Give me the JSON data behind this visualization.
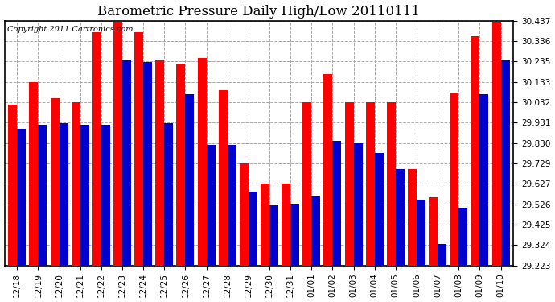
{
  "title": "Barometric Pressure Daily High/Low 20110111",
  "copyright": "Copyright 2011 Cartronics.com",
  "dates": [
    "12/18",
    "12/19",
    "12/20",
    "12/21",
    "12/22",
    "12/23",
    "12/24",
    "12/25",
    "12/26",
    "12/27",
    "12/28",
    "12/29",
    "12/30",
    "12/31",
    "01/01",
    "01/02",
    "01/03",
    "01/04",
    "01/05",
    "01/06",
    "01/07",
    "01/08",
    "01/09",
    "01/10"
  ],
  "highs": [
    30.02,
    30.13,
    30.05,
    30.03,
    30.38,
    30.43,
    30.38,
    30.24,
    30.22,
    30.25,
    30.09,
    29.73,
    29.63,
    29.63,
    30.03,
    30.17,
    30.03,
    30.03,
    30.03,
    29.7,
    29.56,
    30.08,
    30.36,
    30.43
  ],
  "lows": [
    29.9,
    29.92,
    29.93,
    29.92,
    29.92,
    30.24,
    30.23,
    29.93,
    30.07,
    29.82,
    29.82,
    29.59,
    29.52,
    29.53,
    29.57,
    29.84,
    29.83,
    29.78,
    29.7,
    29.55,
    29.33,
    29.51,
    30.07,
    30.24
  ],
  "high_color": "#ff0000",
  "low_color": "#0000cc",
  "ylim_min": 29.223,
  "ylim_max": 30.437,
  "yticks": [
    29.223,
    29.324,
    29.425,
    29.526,
    29.627,
    29.729,
    29.83,
    29.931,
    30.032,
    30.133,
    30.235,
    30.336,
    30.437
  ],
  "bg_color": "#ffffff",
  "grid_color": "#aaaaaa",
  "title_fontsize": 12,
  "tick_fontsize": 7.5,
  "copyright_fontsize": 7
}
